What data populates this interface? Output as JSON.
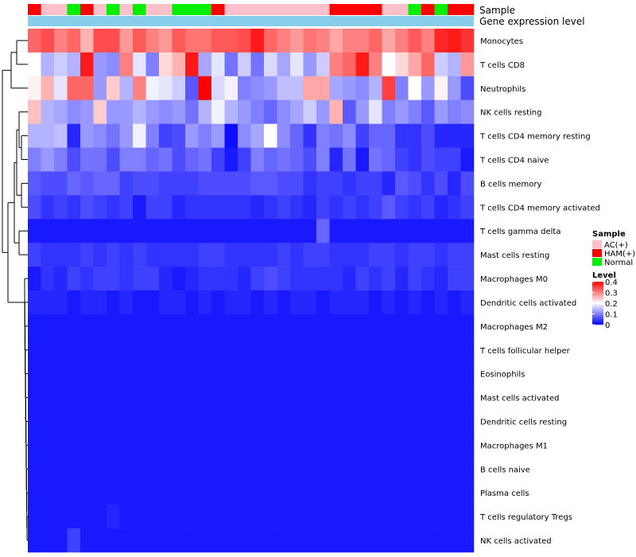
{
  "chart_data": {
    "type": "heatmap",
    "title": "",
    "annotation_labels": [
      "Sample",
      "Gene expression level"
    ],
    "sample_colors": {
      "AC(+)": "#FFC0CB",
      "HAM(+)": "#FF0000",
      "Normal": "#00EE00"
    },
    "gene_expression_color": "#87CEEB",
    "column_groups": [
      "HAM(+)",
      "AC(+)",
      "AC(+)",
      "Normal",
      "HAM(+)",
      "AC(+)",
      "Normal",
      "AC(+)",
      "Normal",
      "AC(+)",
      "AC(+)",
      "Normal",
      "Normal",
      "Normal",
      "HAM(+)",
      "AC(+)",
      "AC(+)",
      "AC(+)",
      "AC(+)",
      "AC(+)",
      "AC(+)",
      "AC(+)",
      "AC(+)",
      "HAM(+)",
      "HAM(+)",
      "HAM(+)",
      "HAM(+)",
      "AC(+)",
      "AC(+)",
      "Normal",
      "HAM(+)",
      "Normal",
      "HAM(+)",
      "HAM(+)"
    ],
    "rows": [
      "Monocytes",
      "T cells CD8",
      "Neutrophils",
      "NK cells resting",
      "T cells CD4 memory resting",
      "T cells CD4 naive",
      "B cells memory",
      "T cells CD4 memory activated",
      "T cells gamma delta",
      "Mast cells resting",
      "Macrophages M0",
      "Dendritic cells activated",
      "Macrophages M2",
      "T cells follicular helper",
      "Eosinophils",
      "Mast cells activated",
      "Dendritic cells resting",
      "Macrophages M1",
      "B cells naive",
      "Plasma cells",
      "T cells regulatory  Tregs",
      "NK cells activated"
    ],
    "values": [
      [
        0.32,
        0.34,
        0.3,
        0.32,
        0.26,
        0.34,
        0.34,
        0.28,
        0.33,
        0.3,
        0.28,
        0.33,
        0.31,
        0.31,
        0.33,
        0.33,
        0.34,
        0.38,
        0.32,
        0.3,
        0.28,
        0.31,
        0.3,
        0.27,
        0.3,
        0.3,
        0.32,
        0.27,
        0.3,
        0.33,
        0.3,
        0.37,
        0.38,
        0.36
      ],
      [
        0.2,
        0.14,
        0.16,
        0.14,
        0.38,
        0.12,
        0.11,
        0.3,
        0.18,
        0.1,
        0.23,
        0.26,
        0.38,
        0.13,
        0.18,
        0.09,
        0.16,
        0.09,
        0.17,
        0.13,
        0.18,
        0.12,
        0.16,
        0.3,
        0.32,
        0.38,
        0.3,
        0.2,
        0.23,
        0.27,
        0.32,
        0.16,
        0.14,
        0.28
      ],
      [
        0.21,
        0.26,
        0.18,
        0.32,
        0.32,
        0.12,
        0.24,
        0.14,
        0.3,
        0.19,
        0.18,
        0.16,
        0.07,
        0.4,
        0.17,
        0.19,
        0.1,
        0.11,
        0.12,
        0.15,
        0.15,
        0.27,
        0.27,
        0.13,
        0.12,
        0.11,
        0.14,
        0.35,
        0.1,
        0.2,
        0.12,
        0.21,
        0.12,
        0.06
      ],
      [
        0.25,
        0.14,
        0.13,
        0.11,
        0.12,
        0.24,
        0.12,
        0.12,
        0.14,
        0.12,
        0.11,
        0.12,
        0.09,
        0.14,
        0.19,
        0.14,
        0.12,
        0.1,
        0.08,
        0.11,
        0.13,
        0.16,
        0.12,
        0.26,
        0.07,
        0.12,
        0.18,
        0.1,
        0.12,
        0.1,
        0.07,
        0.12,
        0.1,
        0.11
      ],
      [
        0.14,
        0.14,
        0.15,
        0.03,
        0.12,
        0.11,
        0.09,
        0.12,
        0.19,
        0.1,
        0.05,
        0.06,
        0.12,
        0.1,
        0.12,
        0.01,
        0.11,
        0.13,
        0.2,
        0.11,
        0.08,
        0.04,
        0.1,
        0.09,
        0.11,
        0.05,
        0.08,
        0.08,
        0.04,
        0.04,
        0.06,
        0.03,
        0.03,
        0.03
      ],
      [
        0.1,
        0.12,
        0.1,
        0.06,
        0.09,
        0.09,
        0.06,
        0.1,
        0.1,
        0.08,
        0.09,
        0.06,
        0.08,
        0.09,
        0.05,
        0.02,
        0.05,
        0.1,
        0.08,
        0.09,
        0.08,
        0.06,
        0.1,
        0.03,
        0.09,
        0.02,
        0.09,
        0.08,
        0.05,
        0.04,
        0.06,
        0.05,
        0.05,
        0.02
      ],
      [
        0.07,
        0.06,
        0.06,
        0.08,
        0.07,
        0.08,
        0.08,
        0.05,
        0.06,
        0.06,
        0.05,
        0.05,
        0.05,
        0.06,
        0.06,
        0.06,
        0.06,
        0.07,
        0.07,
        0.06,
        0.06,
        0.04,
        0.05,
        0.05,
        0.04,
        0.05,
        0.05,
        0.03,
        0.07,
        0.06,
        0.04,
        0.06,
        0.03,
        0.06
      ],
      [
        0.06,
        0.04,
        0.05,
        0.04,
        0.06,
        0.05,
        0.04,
        0.05,
        0.02,
        0.05,
        0.05,
        0.03,
        0.04,
        0.04,
        0.04,
        0.04,
        0.04,
        0.03,
        0.04,
        0.05,
        0.04,
        0.03,
        0.05,
        0.04,
        0.05,
        0.04,
        0.05,
        0.07,
        0.05,
        0.04,
        0.05,
        0.03,
        0.04,
        0.05
      ],
      [
        0.02,
        0.02,
        0.02,
        0.02,
        0.02,
        0.02,
        0.02,
        0.02,
        0.02,
        0.02,
        0.02,
        0.02,
        0.02,
        0.02,
        0.02,
        0.02,
        0.02,
        0.02,
        0.02,
        0.02,
        0.02,
        0.02,
        0.08,
        0.02,
        0.02,
        0.02,
        0.02,
        0.02,
        0.02,
        0.02,
        0.02,
        0.02,
        0.02,
        0.02
      ],
      [
        0.05,
        0.04,
        0.04,
        0.04,
        0.05,
        0.04,
        0.05,
        0.04,
        0.05,
        0.04,
        0.04,
        0.04,
        0.04,
        0.05,
        0.05,
        0.04,
        0.04,
        0.04,
        0.04,
        0.05,
        0.04,
        0.05,
        0.05,
        0.04,
        0.04,
        0.04,
        0.05,
        0.05,
        0.04,
        0.05,
        0.05,
        0.04,
        0.05,
        0.05
      ],
      [
        0.02,
        0.04,
        0.03,
        0.05,
        0.04,
        0.05,
        0.05,
        0.04,
        0.05,
        0.05,
        0.03,
        0.02,
        0.03,
        0.04,
        0.04,
        0.04,
        0.03,
        0.05,
        0.06,
        0.05,
        0.04,
        0.04,
        0.04,
        0.04,
        0.03,
        0.05,
        0.04,
        0.05,
        0.03,
        0.05,
        0.04,
        0.03,
        0.05,
        0.05
      ],
      [
        0.03,
        0.03,
        0.03,
        0.02,
        0.03,
        0.03,
        0.02,
        0.03,
        0.02,
        0.02,
        0.03,
        0.03,
        0.02,
        0.03,
        0.02,
        0.03,
        0.03,
        0.02,
        0.03,
        0.02,
        0.03,
        0.03,
        0.02,
        0.03,
        0.03,
        0.03,
        0.02,
        0.03,
        0.02,
        0.03,
        0.02,
        0.03,
        0.02,
        0.03
      ],
      [
        0.02,
        0.02,
        0.02,
        0.02,
        0.02,
        0.02,
        0.02,
        0.02,
        0.02,
        0.02,
        0.02,
        0.02,
        0.02,
        0.02,
        0.02,
        0.02,
        0.02,
        0.02,
        0.02,
        0.02,
        0.02,
        0.02,
        0.02,
        0.02,
        0.02,
        0.02,
        0.02,
        0.02,
        0.02,
        0.02,
        0.02,
        0.02,
        0.02,
        0.02
      ],
      [
        0.02,
        0.02,
        0.02,
        0.02,
        0.02,
        0.02,
        0.02,
        0.02,
        0.02,
        0.02,
        0.02,
        0.02,
        0.02,
        0.02,
        0.02,
        0.02,
        0.02,
        0.02,
        0.02,
        0.02,
        0.02,
        0.02,
        0.02,
        0.02,
        0.02,
        0.02,
        0.02,
        0.02,
        0.02,
        0.02,
        0.02,
        0.02,
        0.02,
        0.02
      ],
      [
        0.02,
        0.02,
        0.02,
        0.02,
        0.02,
        0.02,
        0.02,
        0.02,
        0.02,
        0.02,
        0.02,
        0.02,
        0.02,
        0.02,
        0.02,
        0.02,
        0.02,
        0.02,
        0.02,
        0.02,
        0.02,
        0.02,
        0.02,
        0.02,
        0.02,
        0.02,
        0.02,
        0.02,
        0.02,
        0.02,
        0.02,
        0.02,
        0.02,
        0.02
      ],
      [
        0.02,
        0.02,
        0.02,
        0.02,
        0.02,
        0.02,
        0.02,
        0.02,
        0.02,
        0.02,
        0.02,
        0.02,
        0.02,
        0.02,
        0.02,
        0.02,
        0.02,
        0.02,
        0.02,
        0.02,
        0.02,
        0.02,
        0.02,
        0.02,
        0.02,
        0.02,
        0.02,
        0.02,
        0.02,
        0.02,
        0.02,
        0.02,
        0.02,
        0.02
      ],
      [
        0.02,
        0.02,
        0.02,
        0.02,
        0.02,
        0.02,
        0.02,
        0.02,
        0.02,
        0.02,
        0.02,
        0.02,
        0.02,
        0.02,
        0.02,
        0.02,
        0.02,
        0.02,
        0.02,
        0.02,
        0.02,
        0.02,
        0.02,
        0.02,
        0.02,
        0.02,
        0.02,
        0.02,
        0.02,
        0.02,
        0.02,
        0.02,
        0.02,
        0.02
      ],
      [
        0.02,
        0.02,
        0.02,
        0.02,
        0.02,
        0.02,
        0.02,
        0.02,
        0.02,
        0.02,
        0.02,
        0.02,
        0.02,
        0.02,
        0.02,
        0.02,
        0.02,
        0.02,
        0.02,
        0.02,
        0.02,
        0.02,
        0.02,
        0.02,
        0.02,
        0.02,
        0.02,
        0.02,
        0.02,
        0.02,
        0.02,
        0.02,
        0.02,
        0.02
      ],
      [
        0.02,
        0.02,
        0.02,
        0.02,
        0.02,
        0.02,
        0.02,
        0.02,
        0.02,
        0.02,
        0.02,
        0.02,
        0.02,
        0.02,
        0.02,
        0.02,
        0.02,
        0.02,
        0.02,
        0.02,
        0.02,
        0.02,
        0.02,
        0.02,
        0.02,
        0.02,
        0.02,
        0.02,
        0.02,
        0.02,
        0.02,
        0.02,
        0.02,
        0.02
      ],
      [
        0.02,
        0.02,
        0.02,
        0.02,
        0.02,
        0.02,
        0.02,
        0.02,
        0.02,
        0.02,
        0.02,
        0.02,
        0.02,
        0.02,
        0.02,
        0.02,
        0.02,
        0.02,
        0.02,
        0.02,
        0.02,
        0.02,
        0.02,
        0.02,
        0.02,
        0.02,
        0.02,
        0.02,
        0.02,
        0.02,
        0.02,
        0.02,
        0.02,
        0.02
      ],
      [
        0.02,
        0.02,
        0.02,
        0.02,
        0.02,
        0.02,
        0.03,
        0.02,
        0.02,
        0.02,
        0.02,
        0.02,
        0.02,
        0.02,
        0.02,
        0.02,
        0.02,
        0.02,
        0.02,
        0.02,
        0.02,
        0.02,
        0.02,
        0.02,
        0.02,
        0.02,
        0.02,
        0.02,
        0.02,
        0.02,
        0.02,
        0.02,
        0.02,
        0.02
      ],
      [
        0.02,
        0.02,
        0.02,
        0.05,
        0.02,
        0.02,
        0.02,
        0.02,
        0.02,
        0.02,
        0.02,
        0.02,
        0.02,
        0.02,
        0.02,
        0.02,
        0.02,
        0.02,
        0.02,
        0.02,
        0.02,
        0.02,
        0.02,
        0.02,
        0.02,
        0.02,
        0.02,
        0.02,
        0.02,
        0.02,
        0.02,
        0.02,
        0.02,
        0.02
      ]
    ],
    "color_scale": {
      "low": "#0000FF",
      "mid": "#FFFFFF",
      "high": "#FF0000",
      "min": 0,
      "mid_value": 0.2,
      "max": 0.4
    },
    "legend": {
      "sample_title": "Sample",
      "sample_items": [
        {
          "label": "AC(+)",
          "color": "#FFC0CB"
        },
        {
          "label": "HAM(+)",
          "color": "#FF0000"
        },
        {
          "label": "Normal",
          "color": "#00EE00"
        }
      ],
      "level_title": "Level",
      "level_ticks": [
        {
          "label": "0.4",
          "value": 0.4
        },
        {
          "label": "0.3",
          "value": 0.3
        },
        {
          "label": "0.2",
          "value": 0.2
        },
        {
          "label": "0.1",
          "value": 0.1
        },
        {
          "label": "0",
          "value": 0
        }
      ]
    }
  }
}
